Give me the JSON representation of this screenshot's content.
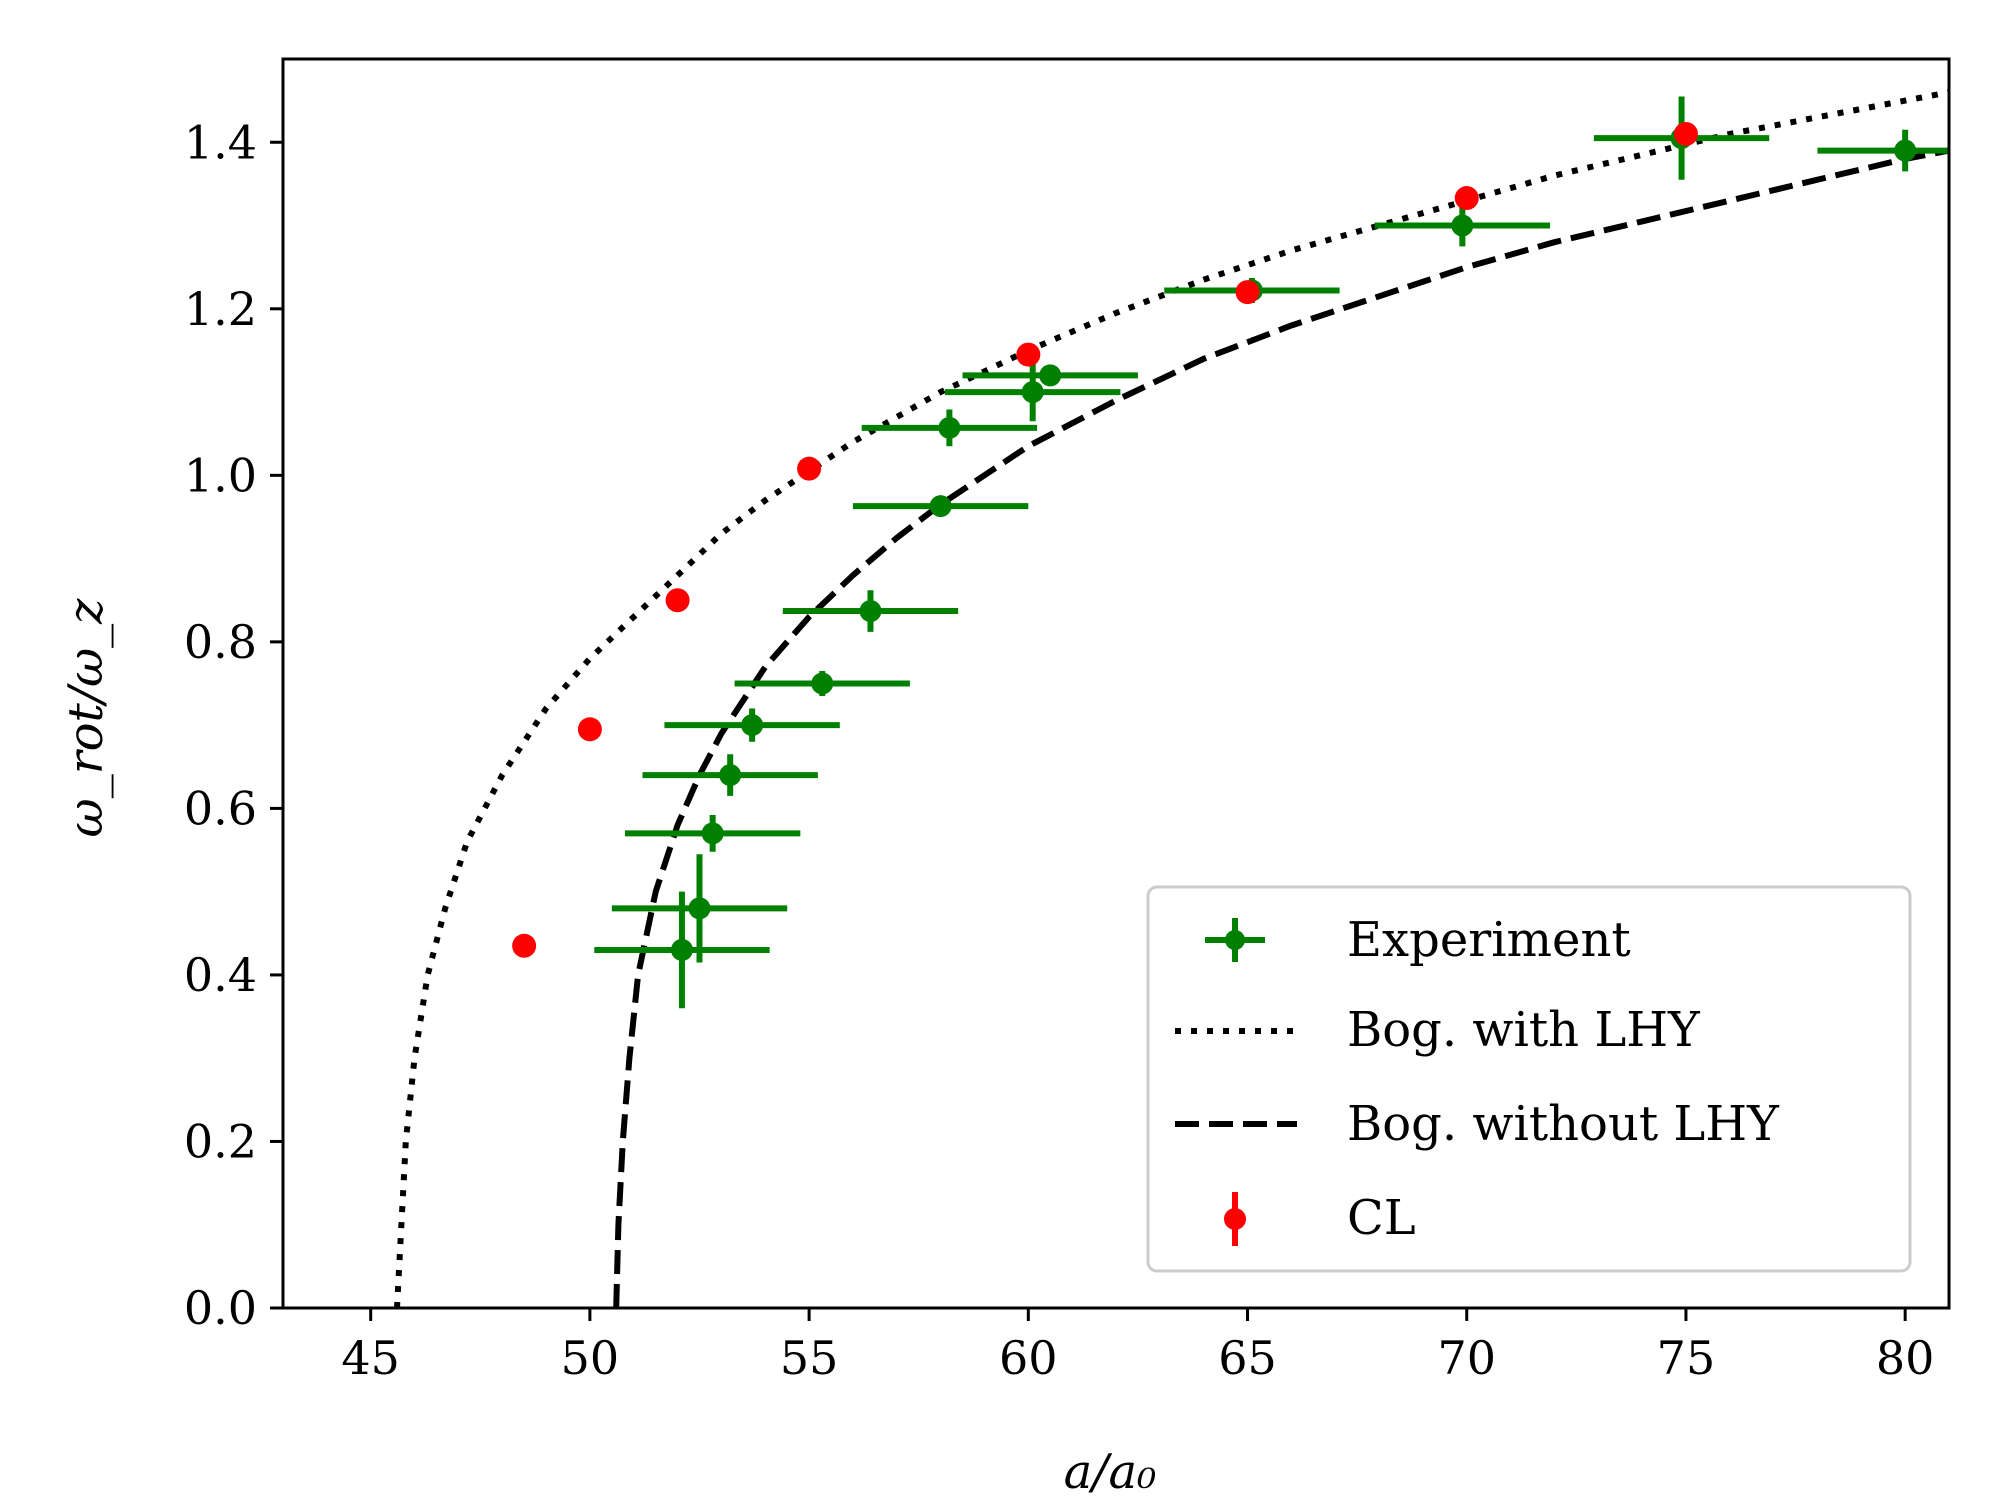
{
  "chart_data": {
    "type": "scatter",
    "xlabel": "a/a₀",
    "ylabel": "ω_rot/ω_z",
    "xlim": [
      43,
      81
    ],
    "ylim": [
      0.0,
      1.5
    ],
    "xticks": [
      45,
      50,
      55,
      60,
      65,
      70,
      75,
      80
    ],
    "yticks": [
      0.0,
      0.2,
      0.4,
      0.6,
      0.8,
      1.0,
      1.2,
      1.4
    ],
    "xtick_labels": [
      "45",
      "50",
      "55",
      "60",
      "65",
      "70",
      "75",
      "80"
    ],
    "ytick_labels": [
      "0.0",
      "0.2",
      "0.4",
      "0.6",
      "0.8",
      "1.0",
      "1.2",
      "1.4"
    ],
    "grid": false,
    "legend_position": "lower-right",
    "series": [
      {
        "name": "Experiment",
        "kind": "errorbar",
        "color": "#008000",
        "points": [
          {
            "x": 52.1,
            "y": 0.43,
            "xerr": 2.0,
            "yerr": 0.07
          },
          {
            "x": 52.5,
            "y": 0.48,
            "xerr": 2.0,
            "yerr": 0.065
          },
          {
            "x": 52.8,
            "y": 0.57,
            "xerr": 2.0,
            "yerr": 0.022
          },
          {
            "x": 53.2,
            "y": 0.64,
            "xerr": 2.0,
            "yerr": 0.025
          },
          {
            "x": 53.7,
            "y": 0.7,
            "xerr": 2.0,
            "yerr": 0.02
          },
          {
            "x": 55.3,
            "y": 0.75,
            "xerr": 2.0,
            "yerr": 0.015
          },
          {
            "x": 56.4,
            "y": 0.837,
            "xerr": 2.0,
            "yerr": 0.025
          },
          {
            "x": 58.0,
            "y": 0.963,
            "xerr": 2.0,
            "yerr": 0.012
          },
          {
            "x": 58.2,
            "y": 1.057,
            "xerr": 2.0,
            "yerr": 0.022
          },
          {
            "x": 60.1,
            "y": 1.1,
            "xerr": 2.0,
            "yerr": 0.035
          },
          {
            "x": 60.5,
            "y": 1.12,
            "xerr": 2.0,
            "yerr": 0.012
          },
          {
            "x": 65.1,
            "y": 1.222,
            "xerr": 2.0,
            "yerr": 0.015
          },
          {
            "x": 69.9,
            "y": 1.3,
            "xerr": 2.0,
            "yerr": 0.025
          },
          {
            "x": 74.9,
            "y": 1.405,
            "xerr": 2.0,
            "yerr": 0.05
          },
          {
            "x": 80.0,
            "y": 1.39,
            "xerr": 2.0,
            "yerr": 0.025
          }
        ]
      },
      {
        "name": "Bog. with LHY",
        "kind": "line",
        "style": "dotted",
        "color": "#000000",
        "x": [
          45.6,
          45.7,
          45.8,
          46.0,
          46.3,
          46.7,
          47.2,
          48.0,
          49.0,
          50.0,
          51.0,
          52.0,
          53.0,
          54.0,
          55.0,
          56.0,
          57.0,
          58.0,
          59.0,
          60.0,
          62.0,
          64.0,
          66.0,
          68.0,
          70.0,
          72.0,
          74.0,
          76.0,
          78.0,
          80.0,
          81.0
        ],
        "y": [
          0.0,
          0.1,
          0.2,
          0.3,
          0.4,
          0.48,
          0.56,
          0.64,
          0.72,
          0.78,
          0.83,
          0.88,
          0.93,
          0.97,
          1.005,
          1.04,
          1.07,
          1.1,
          1.125,
          1.15,
          1.195,
          1.235,
          1.27,
          1.3,
          1.33,
          1.36,
          1.385,
          1.41,
          1.43,
          1.45,
          1.46
        ]
      },
      {
        "name": "Bog. without LHY",
        "kind": "line",
        "style": "dashed",
        "color": "#000000",
        "x": [
          50.6,
          50.65,
          50.75,
          50.9,
          51.1,
          51.5,
          52.0,
          52.5,
          53.0,
          54.0,
          55.0,
          56.0,
          57.0,
          58.0,
          59.0,
          60.0,
          62.0,
          64.0,
          66.0,
          68.0,
          70.0,
          72.0,
          74.0,
          76.0,
          78.0,
          80.0,
          81.0
        ],
        "y": [
          0.0,
          0.1,
          0.2,
          0.3,
          0.4,
          0.5,
          0.58,
          0.64,
          0.69,
          0.77,
          0.83,
          0.88,
          0.925,
          0.965,
          1.0,
          1.035,
          1.09,
          1.14,
          1.18,
          1.215,
          1.25,
          1.28,
          1.305,
          1.33,
          1.355,
          1.38,
          1.39
        ]
      },
      {
        "name": "CL",
        "kind": "scatter",
        "color": "#ff0000",
        "points": [
          {
            "x": 48.5,
            "y": 0.435
          },
          {
            "x": 50.0,
            "y": 0.695
          },
          {
            "x": 52.0,
            "y": 0.85
          },
          {
            "x": 55.0,
            "y": 1.008
          },
          {
            "x": 60.0,
            "y": 1.145
          },
          {
            "x": 65.0,
            "y": 1.22
          },
          {
            "x": 70.0,
            "y": 1.333
          },
          {
            "x": 75.0,
            "y": 1.41
          }
        ]
      }
    ],
    "legend": [
      "Experiment",
      "Bog. with LHY",
      "Bog. without LHY",
      "CL"
    ]
  }
}
